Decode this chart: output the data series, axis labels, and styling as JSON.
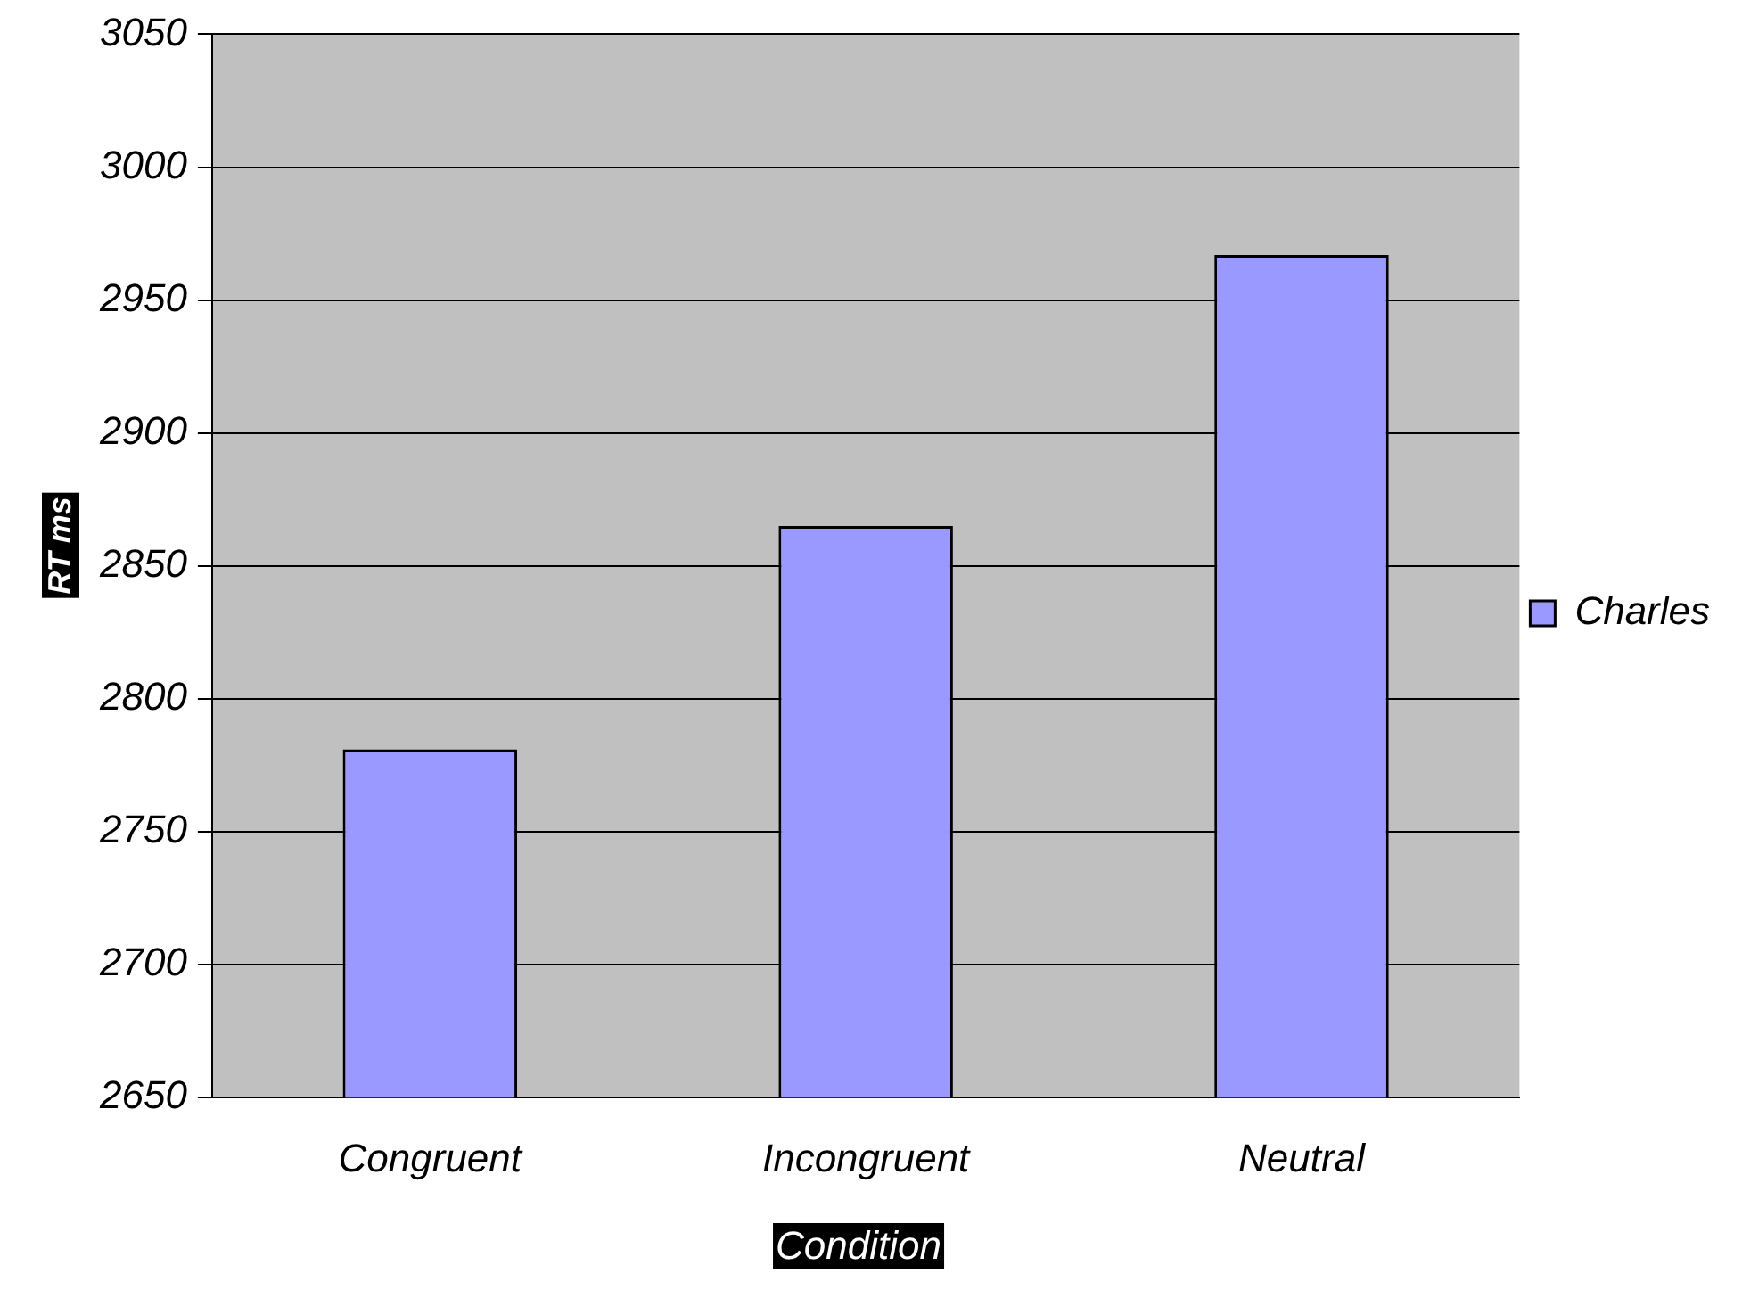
{
  "chart_data": {
    "type": "bar",
    "xlabel": "Condition",
    "ylabel": "RT ms",
    "categories": [
      "Congruent",
      "Incongruent",
      "Neutral"
    ],
    "series": [
      {
        "name": "Charles",
        "color": "#9999ff",
        "values": [
          2781,
          2865,
          2967
        ]
      }
    ],
    "ylim": [
      2650,
      3050
    ],
    "yticks": [
      2650,
      2700,
      2750,
      2800,
      2850,
      2900,
      2950,
      3000,
      3050
    ],
    "grid": "y",
    "legend": "right"
  }
}
